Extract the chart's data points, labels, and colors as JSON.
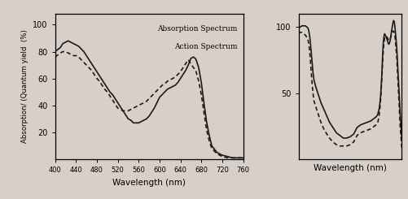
{
  "left_chart": {
    "xlabel": "Wavelength (nm)",
    "ylabel": "Absorption/ (Quantum yield  (%)",
    "xlim": [
      400,
      760
    ],
    "ylim": [
      0,
      108
    ],
    "yticks": [
      20,
      40,
      60,
      80,
      100
    ],
    "xticks": [
      400,
      440,
      480,
      520,
      560,
      600,
      640,
      680,
      720,
      760
    ],
    "legend_lines": [
      "Absorption Spectrum",
      "Action Spectrum"
    ],
    "solid_color": "#1a1a1a",
    "dashed_color": "#1a1a1a",
    "solid_x": [
      400,
      410,
      415,
      420,
      425,
      430,
      435,
      440,
      445,
      450,
      455,
      460,
      465,
      470,
      475,
      480,
      485,
      490,
      495,
      500,
      505,
      510,
      515,
      520,
      525,
      530,
      535,
      540,
      545,
      550,
      555,
      560,
      565,
      570,
      575,
      580,
      585,
      590,
      595,
      600,
      605,
      610,
      615,
      620,
      625,
      630,
      635,
      640,
      645,
      650,
      655,
      660,
      665,
      668,
      670,
      675,
      680,
      685,
      690,
      695,
      700,
      710,
      720,
      730,
      740,
      750,
      760
    ],
    "solid_y": [
      80,
      83,
      86,
      87,
      88,
      87,
      86,
      85,
      84,
      82,
      80,
      77,
      74,
      71,
      68,
      65,
      62,
      59,
      56,
      53,
      50,
      48,
      45,
      42,
      39,
      36,
      33,
      30,
      29,
      27,
      27,
      27,
      28,
      29,
      30,
      32,
      35,
      38,
      42,
      46,
      48,
      50,
      52,
      53,
      54,
      55,
      57,
      60,
      63,
      66,
      70,
      75,
      76,
      75,
      74,
      68,
      57,
      42,
      28,
      18,
      10,
      5,
      3,
      2,
      1,
      1,
      1
    ],
    "dashed_x": [
      400,
      410,
      415,
      420,
      425,
      430,
      435,
      440,
      445,
      450,
      455,
      460,
      465,
      470,
      475,
      480,
      485,
      490,
      495,
      500,
      505,
      510,
      515,
      520,
      525,
      530,
      535,
      540,
      545,
      550,
      555,
      560,
      565,
      570,
      575,
      580,
      585,
      590,
      595,
      600,
      605,
      610,
      615,
      620,
      625,
      630,
      635,
      640,
      645,
      650,
      655,
      660,
      665,
      668,
      670,
      675,
      680,
      685,
      690,
      695,
      700,
      710,
      720,
      730,
      740,
      750,
      760
    ],
    "dashed_y": [
      76,
      79,
      80,
      80,
      79,
      78,
      77,
      77,
      76,
      74,
      72,
      70,
      68,
      66,
      63,
      60,
      58,
      55,
      52,
      50,
      47,
      44,
      41,
      38,
      37,
      36,
      36,
      36,
      37,
      38,
      39,
      40,
      41,
      42,
      43,
      45,
      47,
      49,
      51,
      53,
      55,
      56,
      58,
      59,
      60,
      61,
      63,
      65,
      68,
      71,
      74,
      71,
      68,
      67,
      65,
      58,
      48,
      35,
      22,
      14,
      8,
      4,
      2,
      1,
      1,
      1,
      1
    ]
  },
  "right_chart": {
    "xlabel": "Wavelength (nm)",
    "xlim": [
      400,
      700
    ],
    "ylim": [
      0,
      110
    ],
    "yticks": [
      50,
      100
    ],
    "solid_color": "#1a1a1a",
    "dashed_color": "#1a1a1a",
    "solid_x": [
      400,
      405,
      410,
      415,
      420,
      425,
      428,
      430,
      432,
      434,
      436,
      438,
      440,
      442,
      445,
      450,
      455,
      460,
      465,
      470,
      475,
      480,
      490,
      500,
      510,
      520,
      530,
      540,
      550,
      555,
      560,
      562,
      564,
      566,
      568,
      570,
      575,
      580,
      590,
      600,
      610,
      615,
      620,
      625,
      628,
      630,
      632,
      634,
      636,
      638,
      640,
      642,
      644,
      646,
      648,
      650,
      652,
      655,
      658,
      660,
      662,
      664,
      666,
      668,
      670,
      672,
      674,
      676,
      678,
      680,
      685,
      690,
      695,
      700
    ],
    "solid_y": [
      100,
      100,
      101,
      101,
      101,
      100,
      99,
      97,
      94,
      90,
      84,
      78,
      72,
      66,
      60,
      55,
      51,
      47,
      43,
      40,
      37,
      34,
      28,
      24,
      20,
      18,
      16,
      16,
      17,
      18,
      19,
      20,
      21,
      22,
      23,
      24,
      25,
      26,
      27,
      28,
      29,
      30,
      31,
      32,
      33,
      34,
      36,
      38,
      42,
      47,
      55,
      65,
      78,
      88,
      93,
      95,
      94,
      92,
      90,
      88,
      87,
      88,
      90,
      93,
      97,
      100,
      103,
      105,
      104,
      100,
      85,
      60,
      35,
      15
    ],
    "dashed_x": [
      400,
      405,
      410,
      415,
      420,
      425,
      428,
      430,
      432,
      434,
      436,
      438,
      440,
      442,
      445,
      450,
      455,
      460,
      465,
      470,
      475,
      480,
      490,
      500,
      510,
      520,
      530,
      540,
      550,
      555,
      560,
      562,
      564,
      566,
      568,
      570,
      575,
      580,
      590,
      600,
      610,
      615,
      620,
      625,
      628,
      630,
      632,
      634,
      636,
      638,
      640,
      642,
      644,
      646,
      648,
      650,
      652,
      655,
      658,
      660,
      662,
      664,
      666,
      668,
      670,
      672,
      674,
      676,
      678,
      680,
      685,
      690,
      695,
      700
    ],
    "dashed_y": [
      97,
      96,
      96,
      95,
      94,
      92,
      90,
      87,
      83,
      77,
      70,
      63,
      56,
      50,
      44,
      40,
      36,
      32,
      28,
      25,
      22,
      20,
      16,
      13,
      11,
      10,
      10,
      10,
      11,
      12,
      13,
      14,
      15,
      16,
      17,
      18,
      19,
      20,
      21,
      22,
      23,
      24,
      25,
      26,
      27,
      28,
      30,
      33,
      38,
      44,
      52,
      62,
      73,
      82,
      88,
      92,
      93,
      93,
      92,
      91,
      90,
      90,
      91,
      93,
      95,
      96,
      97,
      97,
      96,
      93,
      78,
      52,
      25,
      8
    ]
  },
  "bg_color": "#d8d0c8",
  "line_width": 1.2
}
